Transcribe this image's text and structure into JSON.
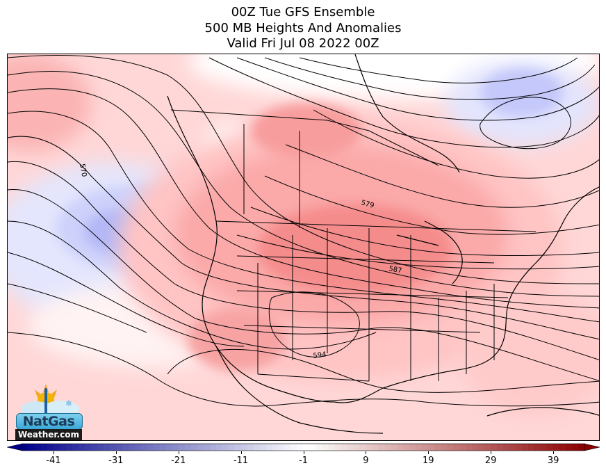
{
  "titles": {
    "line1": "00Z Tue GFS Ensemble",
    "line2": "500 MB Heights And Anomalies",
    "line3": "Valid Fri Jul 08 2022 00Z"
  },
  "contour_labels": [
    {
      "text": "570",
      "value": 570
    },
    {
      "text": "579",
      "value": 579
    },
    {
      "text": "587",
      "value": 587
    },
    {
      "text": "594",
      "value": 594
    }
  ],
  "colorbar": {
    "ticks": [
      "-41",
      "-31",
      "-21",
      "-11",
      "-1",
      "9",
      "19",
      "29",
      "39"
    ],
    "min": -46,
    "max": 44,
    "extend": "both"
  },
  "logo": {
    "main": "NatGas",
    "sub": "Weather.com"
  },
  "colors": {
    "negative": "#3b3bd6",
    "positive": "#e23a3a",
    "neutral": "#ffffff"
  }
}
